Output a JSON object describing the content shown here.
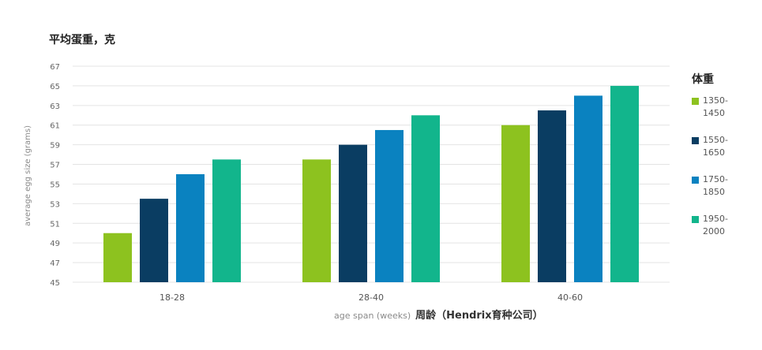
{
  "titles": {
    "cn_title": "平均蛋重，克",
    "ylabel": "average egg size (grams)",
    "xlabel": "age span (weeks)",
    "xlabel_cn": "周龄（Hendrix育种公司）",
    "legend_title": "体重"
  },
  "chart_data": {
    "type": "bar",
    "title": "平均蛋重，克",
    "xlabel": "age span (weeks)",
    "ylabel": "average egg size (grams)",
    "categories": [
      "18-28",
      "28-40",
      "40-60"
    ],
    "ylim": [
      45,
      67
    ],
    "yticks": [
      45,
      47,
      49,
      51,
      53,
      55,
      57,
      59,
      61,
      63,
      65,
      67
    ],
    "grid": true,
    "legend_title": "体重",
    "legend_position": "right",
    "series": [
      {
        "name": "1350-1450",
        "label_lines": [
          "1350-",
          "1450"
        ],
        "color": "#8dc21f",
        "values": [
          50,
          57.5,
          61
        ]
      },
      {
        "name": "1550-1650",
        "label_lines": [
          "1550-",
          "1650"
        ],
        "color": "#0a3d62",
        "values": [
          53.5,
          59,
          62.5
        ]
      },
      {
        "name": "1750-1850",
        "label_lines": [
          "1750-",
          "1850"
        ],
        "color": "#0a82c0",
        "values": [
          56,
          60.5,
          64
        ]
      },
      {
        "name": "1950-2000",
        "label_lines": [
          "1950-",
          "2000"
        ],
        "color": "#12b58c",
        "values": [
          57.5,
          62,
          65
        ]
      }
    ]
  }
}
